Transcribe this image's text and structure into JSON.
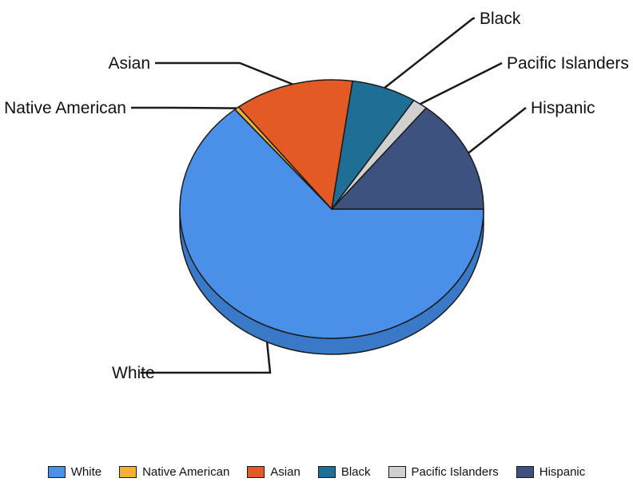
{
  "chart_data": {
    "type": "pie",
    "style": "3d",
    "slices": [
      {
        "label": "White",
        "value": 64.0,
        "color": "#4A90E8",
        "side_color": "#3A78C8"
      },
      {
        "label": "Native American",
        "value": 0.5,
        "color": "#F2B233",
        "side_color": "#D19A28"
      },
      {
        "label": "Asian",
        "value": 12.7,
        "color": "#E35A24",
        "side_color": "#BF4A1C"
      },
      {
        "label": "Black",
        "value": 6.9,
        "color": "#1F6E96",
        "side_color": "#185A7C"
      },
      {
        "label": "Pacific Islanders",
        "value": 1.6,
        "color": "#D0D0D0",
        "side_color": "#ADADAD"
      },
      {
        "label": "Hispanic",
        "value": 14.3,
        "color": "#3E5280",
        "side_color": "#2F4066"
      }
    ],
    "legend_position": "bottom"
  }
}
